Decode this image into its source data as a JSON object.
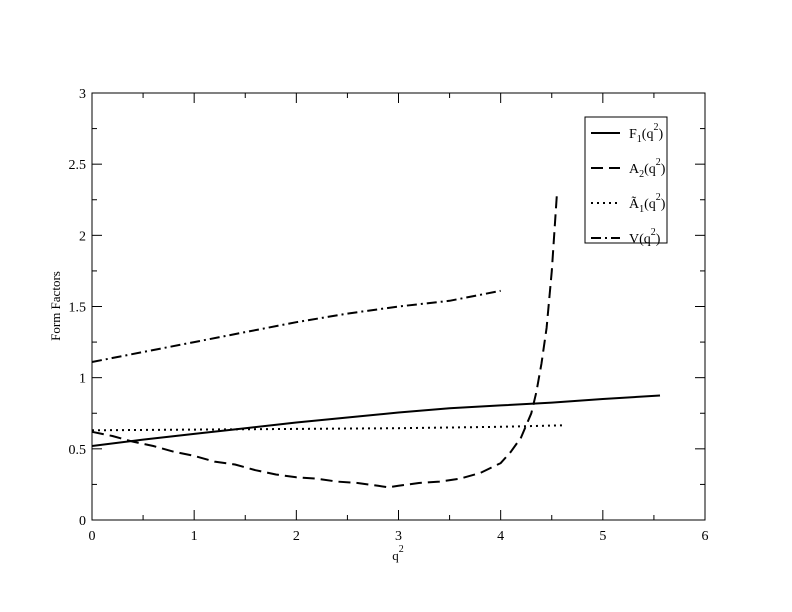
{
  "chart_data": {
    "type": "line",
    "title": "",
    "xlabel_base": "q",
    "xlabel_sup": "2",
    "ylabel": "Form Factors",
    "xlim": [
      0,
      6
    ],
    "ylim": [
      0,
      3
    ],
    "xticks": [
      "0",
      "1",
      "2",
      "3",
      "4",
      "5",
      "6"
    ],
    "yticks": [
      "0",
      "0.5",
      "1",
      "1.5",
      "2",
      "2.5",
      "3"
    ],
    "legend_position": "top-right",
    "grid": false,
    "series": [
      {
        "key": "F1",
        "legend": {
          "base": "F",
          "sub": "1",
          "arg": "(q",
          "sup": "2",
          "close": ")"
        },
        "style": "solid",
        "x": [
          0,
          0.5,
          1,
          1.5,
          2,
          2.5,
          3,
          3.5,
          4,
          4.5,
          5,
          5.56
        ],
        "y": [
          0.52,
          0.565,
          0.605,
          0.645,
          0.685,
          0.72,
          0.755,
          0.785,
          0.805,
          0.825,
          0.85,
          0.875
        ]
      },
      {
        "key": "A2",
        "legend": {
          "base": "A",
          "sub": "2",
          "arg": "(q",
          "sup": "2",
          "close": ")"
        },
        "style": "dashed",
        "x": [
          0,
          0.2,
          0.4,
          0.6,
          0.8,
          1.0,
          1.2,
          1.4,
          1.6,
          1.8,
          2.0,
          2.2,
          2.4,
          2.6,
          2.8,
          2.9,
          3.0,
          3.2,
          3.4,
          3.6,
          3.8,
          4.0,
          4.1,
          4.2,
          4.3,
          4.35,
          4.4,
          4.45,
          4.5,
          4.55
        ],
        "y": [
          0.62,
          0.59,
          0.55,
          0.52,
          0.48,
          0.45,
          0.41,
          0.39,
          0.35,
          0.32,
          0.3,
          0.29,
          0.27,
          0.26,
          0.24,
          0.23,
          0.24,
          0.26,
          0.27,
          0.29,
          0.33,
          0.4,
          0.48,
          0.58,
          0.75,
          0.9,
          1.1,
          1.35,
          1.75,
          2.29
        ]
      },
      {
        "key": "A1tilde",
        "legend": {
          "base": "Ã",
          "sub": "1",
          "arg": "(q",
          "sup": "2",
          "close": ")"
        },
        "style": "dotted",
        "x": [
          0,
          1,
          2,
          3,
          4,
          4.62
        ],
        "y": [
          0.63,
          0.635,
          0.64,
          0.645,
          0.655,
          0.665
        ]
      },
      {
        "key": "V",
        "legend": {
          "base": "V",
          "sub": "",
          "arg": "(q",
          "sup": "2",
          "close": ")"
        },
        "style": "dashdot",
        "x": [
          0,
          0.5,
          1,
          1.5,
          2,
          2.5,
          3,
          3.5,
          4
        ],
        "y": [
          1.11,
          1.18,
          1.25,
          1.32,
          1.39,
          1.45,
          1.5,
          1.54,
          1.61
        ]
      }
    ]
  }
}
